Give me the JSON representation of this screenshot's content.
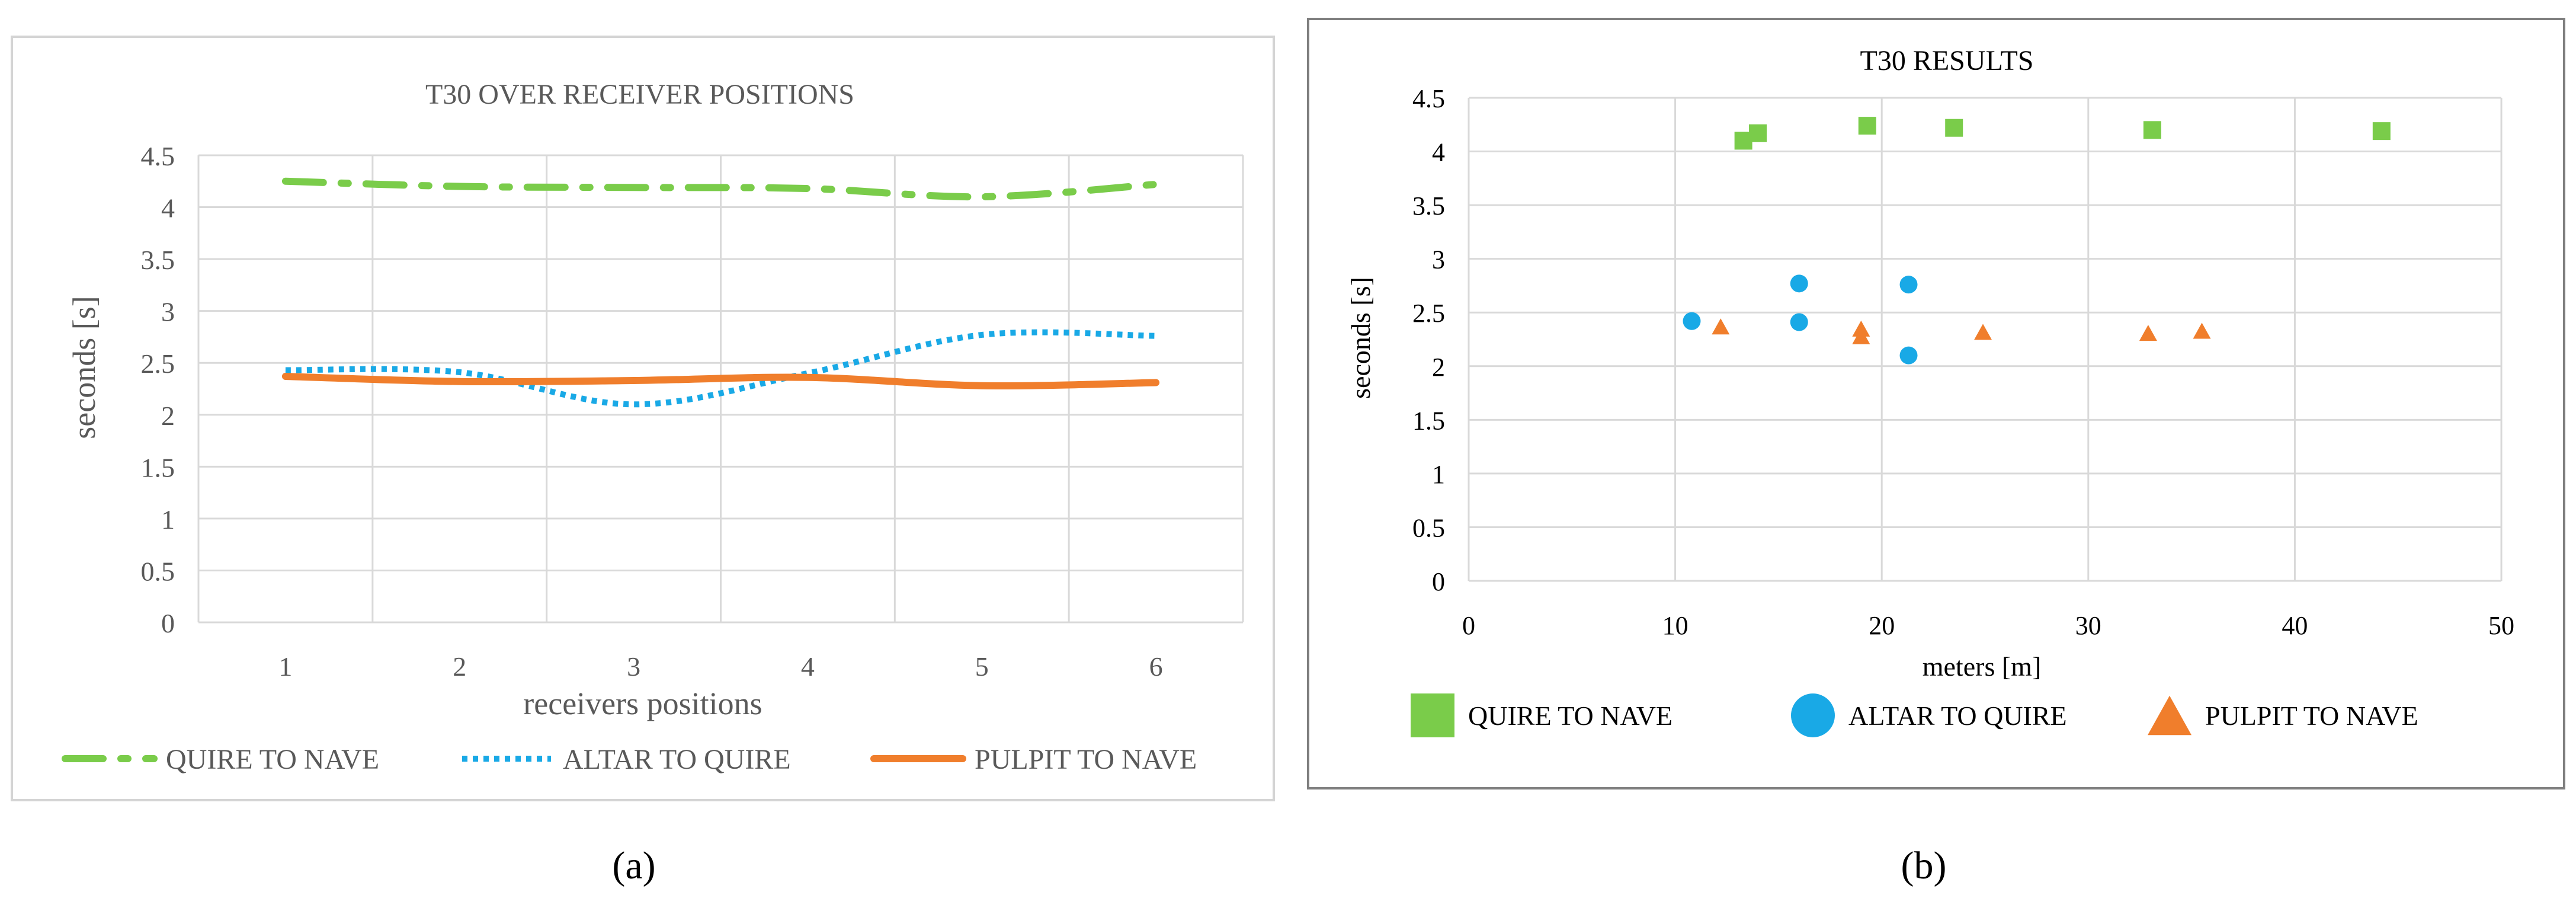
{
  "chart_data": [
    {
      "type": "line",
      "title": "T30 OVER RECEIVER POSITIONS",
      "xlabel": "receivers positions",
      "ylabel": "seconds [s]",
      "categories": [
        "1",
        "2",
        "3",
        "4",
        "5",
        "6"
      ],
      "ylim": [
        0,
        4.5
      ],
      "yticks": [
        "0",
        "0.5",
        "1",
        "1.5",
        "2",
        "2.5",
        "3",
        "3.5",
        "4",
        "4.5"
      ],
      "grid": true,
      "legend_position": "bottom",
      "series": [
        {
          "name": "QUIRE TO NAVE",
          "values": [
            4.25,
            4.2,
            4.19,
            4.18,
            4.1,
            4.22
          ],
          "color": "#7ACC4A",
          "style": "dash-dot"
        },
        {
          "name": "ALTAR TO QUIRE",
          "values": [
            2.43,
            2.41,
            2.1,
            2.4,
            2.77,
            2.76
          ],
          "color": "#19A9E6",
          "style": "dotted"
        },
        {
          "name": "PULPIT TO NAVE",
          "values": [
            2.37,
            2.32,
            2.33,
            2.36,
            2.28,
            2.31
          ],
          "color": "#F07E2C",
          "style": "solid"
        }
      ],
      "panel_label": "(a)"
    },
    {
      "type": "scatter",
      "title": "T30 RESULTS",
      "xlabel": "meters [m]",
      "ylabel": "seconds [s]",
      "xlim": [
        0,
        50
      ],
      "ylim": [
        0,
        4.5
      ],
      "xticks": [
        "0",
        "10",
        "20",
        "30",
        "40",
        "50"
      ],
      "yticks": [
        "0",
        "0.5",
        "1",
        "1.5",
        "2",
        "2.5",
        "3",
        "3.5",
        "4",
        "4.5"
      ],
      "grid": true,
      "legend_position": "bottom",
      "series": [
        {
          "name": "QUIRE TO NAVE",
          "marker": "square",
          "color": "#7ACC4A",
          "points": [
            [
              13.3,
              4.1
            ],
            [
              14.0,
              4.17
            ],
            [
              19.3,
              4.24
            ],
            [
              23.5,
              4.22
            ],
            [
              33.1,
              4.2
            ],
            [
              44.2,
              4.19
            ]
          ]
        },
        {
          "name": "ALTAR TO QUIRE",
          "marker": "circle",
          "color": "#19A9E6",
          "points": [
            [
              10.8,
              2.42
            ],
            [
              16.0,
              2.77
            ],
            [
              16.0,
              2.41
            ],
            [
              21.3,
              2.76
            ],
            [
              21.3,
              2.1
            ]
          ]
        },
        {
          "name": "PULPIT TO NAVE",
          "marker": "triangle",
          "color": "#F07E2C",
          "points": [
            [
              12.2,
              2.37
            ],
            [
              19.0,
              2.35
            ],
            [
              19.0,
              2.28
            ],
            [
              24.9,
              2.32
            ],
            [
              32.9,
              2.31
            ],
            [
              35.5,
              2.33
            ]
          ]
        }
      ],
      "panel_label": "(b)"
    }
  ]
}
